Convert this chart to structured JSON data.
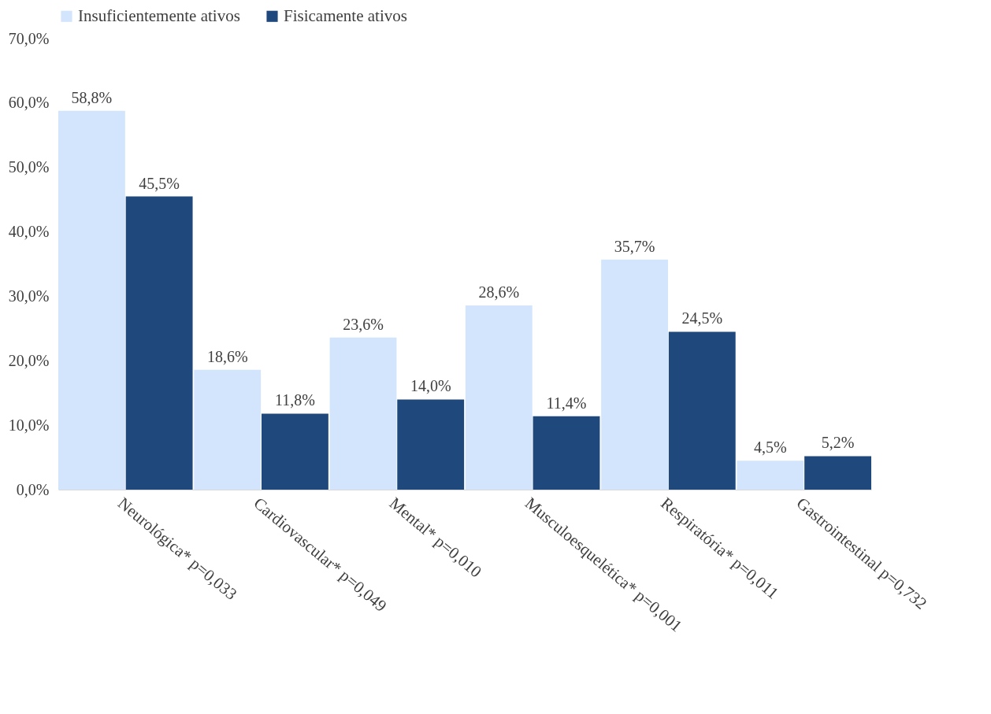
{
  "chart_data": {
    "type": "bar",
    "categories": [
      "Neurológica* p=0,033",
      "Cardiovascular* p=0,049",
      "Mental* p=0,010",
      "Musculoesquelética* p=0,001",
      "Respiratória* p=0,011",
      "Gastrointestinal p=0,732"
    ],
    "series": [
      {
        "name": "Insuficientemente ativos",
        "color": "#d3e5fc",
        "values": [
          58.8,
          18.6,
          23.6,
          28.6,
          35.7,
          4.5
        ],
        "value_labels": [
          "58,8%",
          "18,6%",
          "23,6%",
          "28,6%",
          "35,7%",
          "4,5%"
        ]
      },
      {
        "name": "Fisicamente ativos",
        "color": "#1f497d",
        "values": [
          45.5,
          11.8,
          14.0,
          11.4,
          24.5,
          5.2
        ],
        "value_labels": [
          "45,5%",
          "11,8%",
          "14,0%",
          "11,4%",
          "24,5%",
          "5,2%"
        ]
      }
    ],
    "ylim": [
      0,
      70
    ],
    "yticks": [
      {
        "value": 0,
        "label": "0,0%"
      },
      {
        "value": 10,
        "label": "10,0%"
      },
      {
        "value": 20,
        "label": "20,0%"
      },
      {
        "value": 30,
        "label": "30,0%"
      },
      {
        "value": 40,
        "label": "40,0%"
      },
      {
        "value": 50,
        "label": "50,0%"
      },
      {
        "value": 60,
        "label": "60,0%"
      },
      {
        "value": 70,
        "label": "70,0%"
      }
    ],
    "grid": false,
    "legend": "top"
  }
}
